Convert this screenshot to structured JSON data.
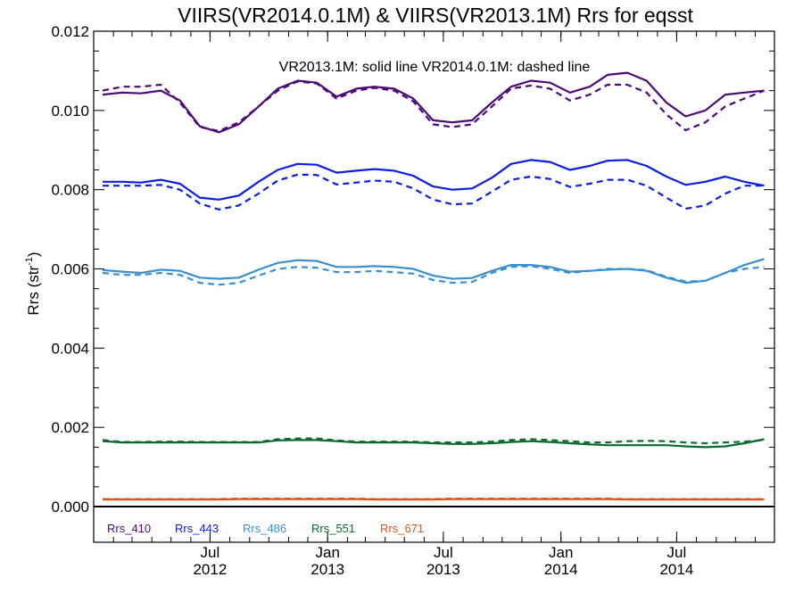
{
  "chart_data": {
    "type": "line",
    "title": "VIIRS(VR2014.0.1M) & VIIRS(VR2013.1M)  Rrs for eqsst",
    "xlabel": "",
    "ylabel": "Rrs (str",
    "ylabel_sup": "-1",
    "ylabel_end": ")",
    "annotation": "VR2013.1M: solid line   VR2014.0.1M: dashed line",
    "xlim": [
      "2012-01-01",
      "2014-12-01"
    ],
    "ylim": [
      -0.0009,
      0.012
    ],
    "y_ticks": [
      0.0,
      0.002,
      0.004,
      0.006,
      0.008,
      0.01,
      0.012
    ],
    "y_tick_labels": [
      "0.000",
      "0.002",
      "0.004",
      "0.006",
      "0.008",
      "0.010",
      "0.012"
    ],
    "x_ticks": [
      {
        "date": "2012-07-01",
        "line1": "Jul",
        "line2": "2012"
      },
      {
        "date": "2013-01-01",
        "line1": "Jan",
        "line2": "2013"
      },
      {
        "date": "2013-07-01",
        "line1": "Jul",
        "line2": "2013"
      },
      {
        "date": "2014-01-01",
        "line1": "Jan",
        "line2": "2014"
      },
      {
        "date": "2014-07-01",
        "line1": "Jul",
        "line2": "2014"
      }
    ],
    "x": [
      "2012-01-15",
      "2012-02-15",
      "2012-03-15",
      "2012-04-15",
      "2012-05-15",
      "2012-06-15",
      "2012-07-15",
      "2012-08-15",
      "2012-09-15",
      "2012-10-15",
      "2012-11-15",
      "2012-12-15",
      "2013-01-15",
      "2013-02-15",
      "2013-03-15",
      "2013-04-15",
      "2013-05-15",
      "2013-06-15",
      "2013-07-15",
      "2013-08-15",
      "2013-09-15",
      "2013-10-15",
      "2013-11-15",
      "2013-12-15",
      "2014-01-15",
      "2014-02-15",
      "2014-03-15",
      "2014-04-15",
      "2014-05-15",
      "2014-06-15",
      "2014-07-15",
      "2014-08-15",
      "2014-09-15",
      "2014-10-15",
      "2014-11-15"
    ],
    "series": [
      {
        "name": "Rrs_410",
        "color": "#4b0a78",
        "style": "solid",
        "values": [
          0.0104,
          0.01045,
          0.01043,
          0.0105,
          0.01025,
          0.0096,
          0.00945,
          0.00965,
          0.0101,
          0.01055,
          0.01075,
          0.0107,
          0.01035,
          0.01055,
          0.0106,
          0.01055,
          0.0103,
          0.00975,
          0.0097,
          0.00975,
          0.0102,
          0.0106,
          0.01075,
          0.0107,
          0.01045,
          0.0106,
          0.0109,
          0.01095,
          0.01075,
          0.0102,
          0.00985,
          0.01,
          0.0104,
          0.01045,
          0.0105
        ]
      },
      {
        "name": "",
        "color": "#4b0a78",
        "style": "dashed",
        "values": [
          0.0105,
          0.0106,
          0.0106,
          0.01065,
          0.0102,
          0.00958,
          0.00948,
          0.0097,
          0.0101,
          0.0105,
          0.01073,
          0.01068,
          0.0103,
          0.0105,
          0.01057,
          0.0105,
          0.01023,
          0.00965,
          0.00958,
          0.00965,
          0.0101,
          0.01055,
          0.01063,
          0.01055,
          0.01025,
          0.0104,
          0.01065,
          0.01065,
          0.01045,
          0.0099,
          0.0095,
          0.0097,
          0.0101,
          0.0103,
          0.0105
        ]
      },
      {
        "name": "Rrs_443",
        "color": "#0a1ee6",
        "style": "solid",
        "values": [
          0.0082,
          0.0082,
          0.00818,
          0.00825,
          0.00815,
          0.0078,
          0.00775,
          0.00785,
          0.0082,
          0.0085,
          0.00865,
          0.00863,
          0.00843,
          0.00848,
          0.00852,
          0.00848,
          0.00835,
          0.00808,
          0.008,
          0.00803,
          0.0083,
          0.00865,
          0.00875,
          0.0087,
          0.0085,
          0.0086,
          0.00873,
          0.00875,
          0.0086,
          0.00833,
          0.00812,
          0.0082,
          0.00833,
          0.0082,
          0.0081
        ]
      },
      {
        "name": "",
        "color": "#0a1ee6",
        "style": "dashed",
        "values": [
          0.0081,
          0.0081,
          0.0081,
          0.00812,
          0.008,
          0.00765,
          0.0075,
          0.0076,
          0.0079,
          0.00823,
          0.00838,
          0.00837,
          0.00813,
          0.00818,
          0.00823,
          0.0082,
          0.00803,
          0.00775,
          0.00763,
          0.00765,
          0.00795,
          0.00825,
          0.00833,
          0.00827,
          0.00807,
          0.00815,
          0.00825,
          0.00825,
          0.0081,
          0.0078,
          0.00752,
          0.0076,
          0.0079,
          0.0081,
          0.0081
        ]
      },
      {
        "name": "Rrs_486",
        "color": "#3a8fd0",
        "style": "solid",
        "values": [
          0.00597,
          0.00593,
          0.0059,
          0.00598,
          0.00595,
          0.00578,
          0.00575,
          0.00578,
          0.00598,
          0.00615,
          0.00622,
          0.0062,
          0.00605,
          0.00605,
          0.00607,
          0.00605,
          0.006,
          0.00583,
          0.00575,
          0.00577,
          0.00595,
          0.0061,
          0.0061,
          0.00605,
          0.00593,
          0.00595,
          0.00598,
          0.006,
          0.00595,
          0.00578,
          0.00565,
          0.0057,
          0.0059,
          0.0061,
          0.00625
        ]
      },
      {
        "name": "",
        "color": "#3a8fd0",
        "style": "dashed",
        "values": [
          0.0059,
          0.00585,
          0.00585,
          0.0059,
          0.00585,
          0.00565,
          0.0056,
          0.00565,
          0.00583,
          0.006,
          0.00605,
          0.00603,
          0.00592,
          0.00592,
          0.00595,
          0.00592,
          0.00588,
          0.00572,
          0.00565,
          0.00567,
          0.0059,
          0.00605,
          0.00607,
          0.006,
          0.0059,
          0.00595,
          0.006,
          0.006,
          0.00597,
          0.0058,
          0.00568,
          0.0057,
          0.0059,
          0.006,
          0.00605
        ]
      },
      {
        "name": "Rrs_551",
        "color": "#0a6a30",
        "style": "solid",
        "values": [
          0.00165,
          0.00162,
          0.00162,
          0.00162,
          0.00162,
          0.00162,
          0.00162,
          0.00162,
          0.00162,
          0.00167,
          0.00168,
          0.00168,
          0.00165,
          0.00162,
          0.00162,
          0.00162,
          0.00162,
          0.0016,
          0.00158,
          0.00158,
          0.0016,
          0.00163,
          0.00165,
          0.00163,
          0.0016,
          0.00157,
          0.00155,
          0.00155,
          0.00155,
          0.00155,
          0.00152,
          0.0015,
          0.00152,
          0.0016,
          0.0017
        ]
      },
      {
        "name": "",
        "color": "#0a6a30",
        "style": "dashed",
        "values": [
          0.00168,
          0.00163,
          0.00163,
          0.00164,
          0.00164,
          0.00163,
          0.00163,
          0.00163,
          0.00163,
          0.0017,
          0.00172,
          0.00172,
          0.00167,
          0.00164,
          0.00164,
          0.00164,
          0.00164,
          0.00162,
          0.00162,
          0.00162,
          0.00164,
          0.00168,
          0.0017,
          0.00168,
          0.00165,
          0.00162,
          0.00162,
          0.00165,
          0.00166,
          0.00165,
          0.00162,
          0.0016,
          0.00162,
          0.00164,
          0.00168
        ]
      },
      {
        "name": "Rrs_671",
        "color": "#e0501a",
        "style": "solid",
        "values": [
          0.00018,
          0.00018,
          0.00018,
          0.00018,
          0.00018,
          0.00018,
          0.00018,
          0.00019,
          0.00019,
          0.00019,
          0.00019,
          0.00019,
          0.00019,
          0.00019,
          0.00018,
          0.00018,
          0.00018,
          0.00018,
          0.00019,
          0.00019,
          0.00019,
          0.00019,
          0.00019,
          0.00019,
          0.00019,
          0.00019,
          0.00019,
          0.00018,
          0.00018,
          0.00018,
          0.00018,
          0.00018,
          0.00018,
          0.00018,
          0.00018
        ]
      },
      {
        "name": "",
        "color": "#e0501a",
        "style": "dashed",
        "values": [
          0.00019,
          0.00019,
          0.00019,
          0.00019,
          0.00019,
          0.00019,
          0.00019,
          0.0002,
          0.0002,
          0.0002,
          0.0002,
          0.0002,
          0.0002,
          0.0002,
          0.00019,
          0.00019,
          0.00019,
          0.00019,
          0.0002,
          0.0002,
          0.0002,
          0.0002,
          0.0002,
          0.0002,
          0.0002,
          0.0002,
          0.0002,
          0.00019,
          0.00019,
          0.00019,
          0.00019,
          0.00019,
          0.00019,
          0.00019,
          0.00019
        ]
      }
    ],
    "legend": [
      {
        "label": "Rrs_410",
        "color": "#4b0a78"
      },
      {
        "label": "Rrs_443",
        "color": "#0a1ee6"
      },
      {
        "label": "Rrs_486",
        "color": "#3a8fd0"
      },
      {
        "label": "Rrs_551",
        "color": "#0a6a30"
      },
      {
        "label": "Rrs_671",
        "color": "#e0501a"
      }
    ],
    "legend_placement": "bottom-left",
    "zero_line": true,
    "grid": false
  }
}
